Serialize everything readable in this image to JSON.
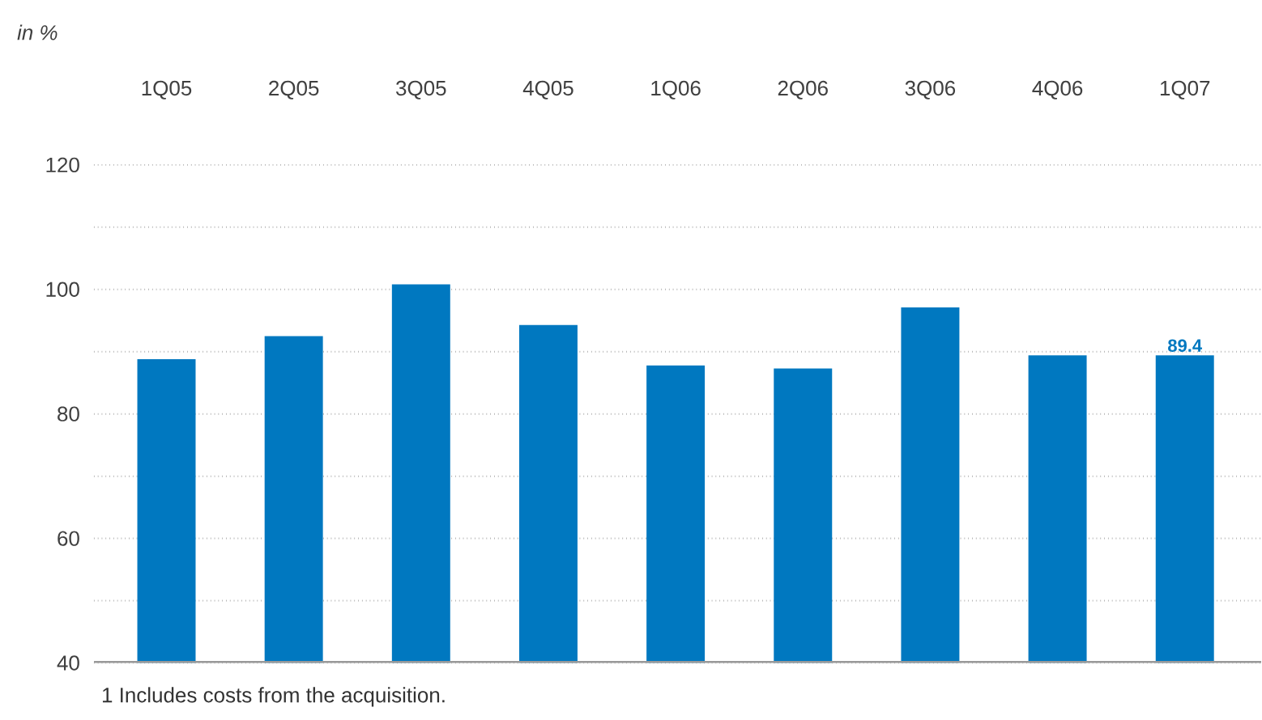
{
  "chart_data": {
    "type": "bar",
    "ylabel": "in %",
    "categories": [
      "1Q05",
      "2Q05",
      "3Q05",
      "4Q05",
      "1Q06",
      "2Q06",
      "3Q06",
      "4Q06",
      "1Q07"
    ],
    "values": [
      88.8,
      92.5,
      100.8,
      94.3,
      87.8,
      87.3,
      97.1,
      89.4,
      89.4
    ],
    "value_labels": [
      null,
      null,
      null,
      null,
      null,
      null,
      null,
      null,
      "89.4"
    ],
    "color": "#0078c0",
    "ylim": [
      40,
      120
    ],
    "yticks": [
      40,
      {
        "value": 50,
        "label": null
      },
      60,
      {
        "value": 70,
        "label": null
      },
      80,
      {
        "value": 90,
        "label": null
      },
      100,
      {
        "value": 110,
        "label": null
      },
      120
    ],
    "grid": "y",
    "annotations": [
      "1 Includes costs from the acquisition."
    ]
  }
}
